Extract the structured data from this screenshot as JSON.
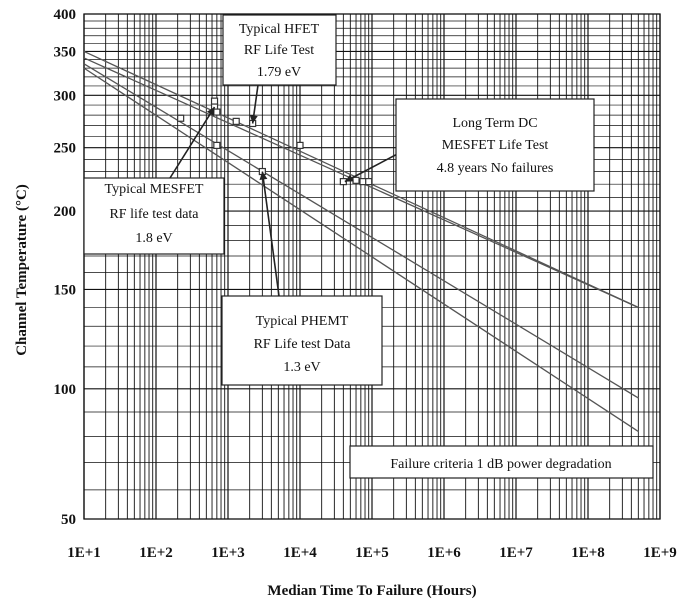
{
  "chart_data": {
    "type": "line",
    "title": "",
    "xlabel": "Median Time To Failure (Hours)",
    "ylabel": "Channel Temperature (°C)",
    "x_scale": "log",
    "y_scale": "reciprocal-kelvin",
    "xlim": [
      10,
      1000000000
    ],
    "ylim": [
      50,
      400
    ],
    "grid": true,
    "x_ticks": [
      {
        "value": 10,
        "label": "1E+1"
      },
      {
        "value": 100,
        "label": "1E+2"
      },
      {
        "value": 1000,
        "label": "1E+3"
      },
      {
        "value": 10000,
        "label": "1E+4"
      },
      {
        "value": 100000,
        "label": "1E+5"
      },
      {
        "value": 1000000,
        "label": "1E+6"
      },
      {
        "value": 10000000,
        "label": "1E+7"
      },
      {
        "value": 100000000,
        "label": "1E+8"
      },
      {
        "value": 1000000000,
        "label": "1E+9"
      }
    ],
    "y_ticks": [
      {
        "value": 400,
        "label": "400"
      },
      {
        "value": 350,
        "label": "350"
      },
      {
        "value": 300,
        "label": "300"
      },
      {
        "value": 250,
        "label": "250"
      },
      {
        "value": 200,
        "label": "200"
      },
      {
        "value": 150,
        "label": "150"
      },
      {
        "value": 100,
        "label": "100"
      },
      {
        "value": 50,
        "label": "50"
      }
    ],
    "series": [
      {
        "x": [
          10,
          500000000
        ],
        "y": [
          350,
          140
        ]
      },
      {
        "x": [
          10,
          500000000
        ],
        "y": [
          342,
          140
        ]
      },
      {
        "x": [
          10,
          500000000
        ],
        "y": [
          335,
          96
        ]
      },
      {
        "x": [
          10,
          500000000
        ],
        "y": [
          330,
          82
        ]
      }
    ],
    "points": [
      {
        "x": 220,
        "y": 277
      },
      {
        "x": 650,
        "y": 294
      },
      {
        "x": 650,
        "y": 288
      },
      {
        "x": 700,
        "y": 283
      },
      {
        "x": 1300,
        "y": 274
      },
      {
        "x": 2200,
        "y": 272
      },
      {
        "x": 700,
        "y": 252
      },
      {
        "x": 10000,
        "y": 252
      },
      {
        "x": 3000,
        "y": 230
      },
      {
        "x": 40000,
        "y": 222
      },
      {
        "x": 60000,
        "y": 223
      },
      {
        "x": 75000,
        "y": 222
      },
      {
        "x": 90000,
        "y": 222
      }
    ],
    "annotations": [
      {
        "lines": [
          "Typical HFET",
          "RF Life Test",
          "1.79 eV"
        ]
      },
      {
        "lines": [
          "Long Term DC",
          "MESFET Life Test",
          "4.8  years No failures"
        ]
      },
      {
        "lines": [
          "Typical MESFET",
          "RF life test data",
          "1.8 eV"
        ]
      },
      {
        "lines": [
          "Typical PHEMT",
          "RF Life test Data",
          "1.3 eV"
        ]
      },
      {
        "lines": [
          "Failure criteria 1 dB power degradation"
        ]
      }
    ]
  }
}
